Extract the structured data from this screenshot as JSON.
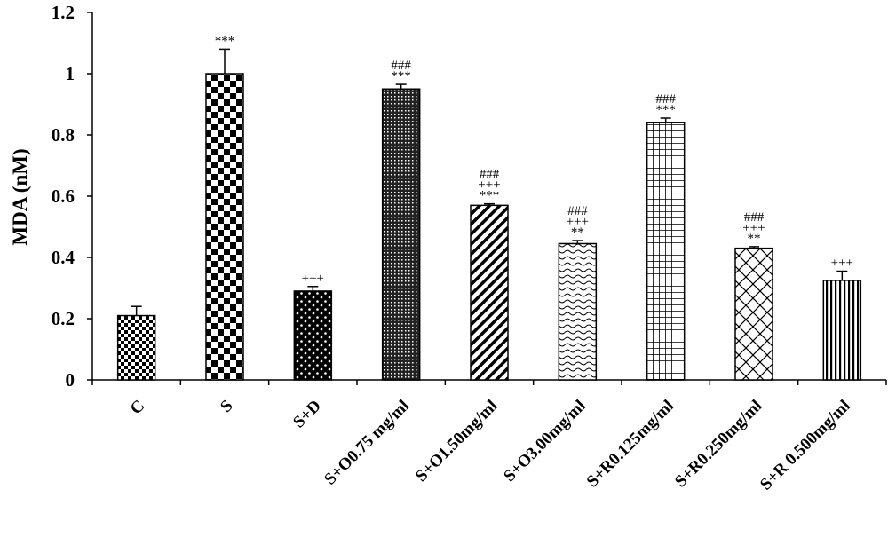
{
  "chart_data": {
    "type": "bar",
    "title": "",
    "xlabel": "",
    "ylabel": "MDA (nM)",
    "ylim": [
      0,
      1.2
    ],
    "yticks": [
      "0",
      "0.2",
      "0.4",
      "0.6",
      "0.8",
      "1",
      "1.2"
    ],
    "grid": false,
    "legend": "none",
    "categories": [
      "C",
      "S",
      "S+D",
      "S+O0.75 mg/ml",
      "S+O1.50mg/ml",
      "S+O3.00mg/ml",
      "S+R0.125mg/ml",
      "S+R0.250mg/ml",
      "S+R 0.500mg/ml"
    ],
    "values": [
      0.21,
      1.0,
      0.29,
      0.95,
      0.57,
      0.445,
      0.84,
      0.43,
      0.325
    ],
    "errors": [
      0.03,
      0.08,
      0.015,
      0.015,
      0.005,
      0.01,
      0.015,
      0.005,
      0.03
    ],
    "significance": [
      [],
      [
        "***"
      ],
      [
        "+++"
      ],
      [
        "###",
        "***"
      ],
      [
        "###",
        "+++",
        "***"
      ],
      [
        "###",
        "+++",
        "**"
      ],
      [
        "###",
        "***"
      ],
      [
        "###",
        "+++",
        "**"
      ],
      [
        "+++"
      ]
    ],
    "patterns": [
      "checker-small",
      "checker-large",
      "dots-on-black",
      "fine-dots",
      "diagonal-lines",
      "waves",
      "grid",
      "cross-hatch",
      "vertical-lines"
    ],
    "colors": {
      "bar_fill": "#ffffff",
      "bar_stroke": "#000000",
      "axis": "#000000"
    }
  }
}
